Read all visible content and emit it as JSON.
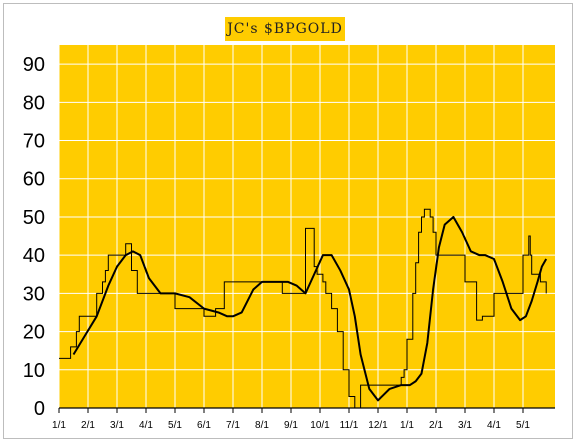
{
  "chart_data": {
    "type": "line",
    "title": "JC's $BPGOLD",
    "xlabel": "",
    "ylabel": "",
    "ylim": [
      0,
      95
    ],
    "yticks": [
      0,
      10,
      20,
      30,
      40,
      50,
      60,
      70,
      80,
      90
    ],
    "xticks": [
      "1/1",
      "2/1",
      "3/1",
      "4/1",
      "5/1",
      "6/1",
      "7/1",
      "8/1",
      "9/1",
      "10/1",
      "11/1",
      "12/1",
      "1/1",
      "2/1",
      "3/1",
      "4/1",
      "5/1"
    ],
    "grid": true,
    "legend": "none",
    "colors": {
      "plot_background": "#ffcc00",
      "gridlines": "#ffffff",
      "series": "#000000",
      "title_background": "#ffcc00"
    },
    "series": [
      {
        "style": "step",
        "x": [
          0.0,
          0.3,
          0.4,
          0.6,
          0.7,
          0.8,
          1.0,
          1.3,
          1.5,
          1.6,
          1.7,
          1.8,
          2.1,
          2.3,
          2.4,
          2.5,
          2.7,
          2.8,
          3.0,
          3.3,
          4.0,
          4.4,
          4.6,
          5.0,
          5.4,
          5.7,
          6.0,
          6.4,
          7.0,
          7.7,
          8.0,
          8.5,
          8.8,
          8.9,
          9.0,
          9.1,
          9.2,
          9.4,
          9.6,
          9.8,
          10.0,
          10.2,
          10.4,
          10.5,
          10.6,
          10.8,
          11.0,
          11.3,
          11.8,
          11.9,
          12.0,
          12.2,
          12.3,
          12.4,
          12.5,
          12.6,
          12.8,
          12.9,
          13.0,
          13.1,
          13.3,
          13.5,
          14.0,
          14.4,
          14.5,
          14.6,
          15.0,
          15.5,
          16.0,
          16.1,
          16.2,
          16.25,
          16.3,
          16.5,
          16.6,
          16.8
        ],
        "y": [
          13,
          13,
          16,
          20,
          24,
          24,
          24,
          30,
          33,
          36,
          40,
          40,
          40,
          43,
          43,
          36,
          30,
          30,
          30,
          30,
          26,
          26,
          26,
          24,
          26,
          33,
          33,
          33,
          33,
          30,
          30,
          47,
          37,
          35,
          35,
          33,
          30,
          26,
          20,
          10,
          3,
          0,
          6,
          6,
          6,
          6,
          6,
          6,
          8,
          10,
          18,
          30,
          38,
          46,
          50,
          52,
          50,
          46,
          40,
          40,
          40,
          40,
          33,
          23,
          23,
          24,
          30,
          30,
          40,
          40,
          45,
          40,
          35,
          35,
          33,
          30
        ]
      },
      {
        "style": "smooth",
        "x": [
          0.5,
          0.9,
          1.3,
          1.7,
          2.0,
          2.3,
          2.55,
          2.8,
          3.1,
          3.5,
          4.0,
          4.5,
          5.0,
          5.5,
          5.8,
          6.0,
          6.3,
          6.7,
          7.0,
          7.5,
          7.9,
          8.2,
          8.5,
          8.8,
          9.1,
          9.4,
          9.7,
          10.0,
          10.2,
          10.4,
          10.7,
          11.0,
          11.4,
          11.8,
          12.1,
          12.3,
          12.5,
          12.7,
          12.9,
          13.1,
          13.3,
          13.6,
          13.9,
          14.2,
          14.5,
          14.7,
          15.0,
          15.3,
          15.6,
          15.9,
          16.1,
          16.3,
          16.5,
          16.65,
          16.8
        ],
        "y": [
          14,
          19,
          24,
          32,
          37,
          40,
          41,
          40,
          34,
          30,
          30,
          29,
          26,
          25,
          24,
          24,
          25,
          31,
          33,
          33,
          33,
          32,
          30,
          35,
          40,
          40,
          36,
          31,
          24,
          14,
          5,
          2,
          5,
          6,
          6,
          7,
          9,
          17,
          31,
          42,
          48,
          50,
          46,
          41,
          40,
          40,
          39,
          33,
          26,
          23,
          24,
          28,
          33,
          37,
          39
        ]
      }
    ]
  }
}
